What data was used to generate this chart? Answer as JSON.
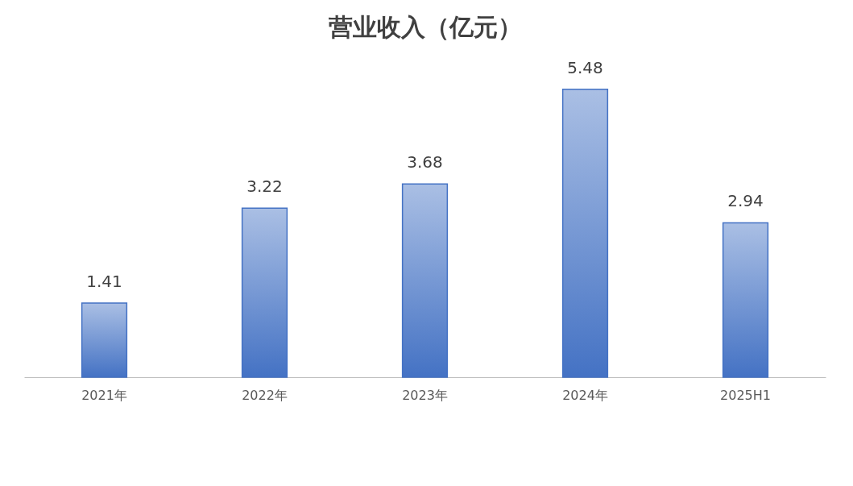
{
  "chart_data": {
    "type": "bar",
    "title": "营业收入（亿元）",
    "categories": [
      "2021年",
      "2022年",
      "2023年",
      "2024年",
      "2025H1"
    ],
    "values": [
      1.41,
      3.22,
      3.68,
      5.48,
      2.94
    ],
    "color": "#4472c4",
    "data_labels": true
  }
}
